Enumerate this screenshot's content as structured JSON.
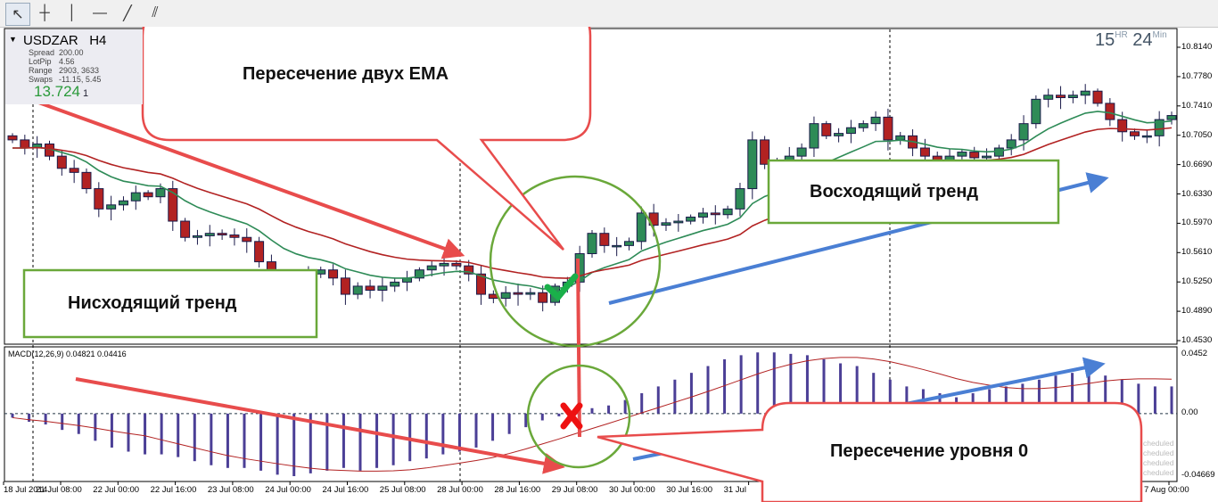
{
  "toolbar": {
    "tools": [
      {
        "icon": "cursor-arrow-icon",
        "glyph": "↖"
      },
      {
        "icon": "crosshair-icon",
        "glyph": "┼"
      },
      {
        "icon": "vertical-line-icon",
        "glyph": "│"
      },
      {
        "icon": "horizontal-line-icon",
        "glyph": "—"
      },
      {
        "icon": "trendline-icon",
        "glyph": "╱"
      },
      {
        "icon": "fibonacci-channel-icon",
        "glyph": "⫽"
      }
    ]
  },
  "symbol_panel": {
    "symbol": "USDZAR",
    "timeframe": "H4",
    "rows": [
      {
        "label": "Spread",
        "value": "200.00"
      },
      {
        "label": "LotPip",
        "value": "4.56"
      },
      {
        "label": "Range",
        "value": "2903, 3633"
      },
      {
        "label": "Swaps",
        "value": "-11.15, 5.45"
      }
    ],
    "value": "13.724",
    "value_suffix": "1"
  },
  "timer": {
    "hours": "15",
    "hours_unit": "HR",
    "minutes": "24",
    "minutes_unit": "Min"
  },
  "chart_data": {
    "type": "candlestick",
    "price_axis": [
      "10.8140",
      "10.7780",
      "10.7410",
      "10.7050",
      "10.6690",
      "10.6330",
      "10.5970",
      "10.5610",
      "10.5250",
      "10.4890",
      "10.4530"
    ],
    "ylim": [
      10.453,
      10.814
    ],
    "closes": [
      10.7,
      10.69,
      10.695,
      10.68,
      10.665,
      10.66,
      10.64,
      10.615,
      10.62,
      10.625,
      10.635,
      10.63,
      10.64,
      10.6,
      10.58,
      10.582,
      10.585,
      10.583,
      10.58,
      10.575,
      10.55,
      10.525,
      10.52,
      10.53,
      10.535,
      10.54,
      10.53,
      10.51,
      10.52,
      10.515,
      10.52,
      10.525,
      10.53,
      10.54,
      10.545,
      10.548,
      10.545,
      10.535,
      10.51,
      10.505,
      10.512,
      10.51,
      10.512,
      10.5,
      10.52,
      10.525,
      10.56,
      10.585,
      10.57,
      10.57,
      10.575,
      10.61,
      10.595,
      10.598,
      10.6,
      10.605,
      10.61,
      10.608,
      10.615,
      10.64,
      10.7,
      10.67,
      10.66,
      10.68,
      10.69,
      10.72,
      10.705,
      10.708,
      10.715,
      10.72,
      10.728,
      10.7,
      10.705,
      10.69,
      10.68,
      10.675,
      10.68,
      10.685,
      10.678,
      10.68,
      10.69,
      10.7,
      10.72,
      10.75,
      10.755,
      10.752,
      10.755,
      10.76,
      10.745,
      10.725,
      10.71,
      10.705,
      10.705,
      10.725,
      10.73
    ],
    "ema_fast_color": "#2e8b57",
    "ema_slow_color": "#b22222",
    "bull_color": "#2e8b57",
    "bear_color": "#b22222",
    "macd": {
      "label": "MACD(12,26,9) 0.04821 0.04416",
      "axis": [
        "0.0452",
        "0.00",
        "-0.04669"
      ],
      "ylim": [
        -0.04669,
        0.0452
      ],
      "values": [
        -0.003,
        -0.006,
        -0.008,
        -0.012,
        -0.015,
        -0.02,
        -0.025,
        -0.028,
        -0.03,
        -0.03,
        -0.032,
        -0.035,
        -0.038,
        -0.04,
        -0.04,
        -0.042,
        -0.045,
        -0.046,
        -0.044,
        -0.042,
        -0.04,
        -0.042,
        -0.04,
        -0.038,
        -0.035,
        -0.033,
        -0.03,
        -0.028,
        -0.025,
        -0.02,
        -0.015,
        -0.01,
        -0.005,
        -0.002,
        0.002,
        0.004,
        0.006,
        0.01,
        0.015,
        0.02,
        0.025,
        0.03,
        0.035,
        0.04,
        0.043,
        0.045,
        0.045,
        0.044,
        0.043,
        0.04,
        0.037,
        0.035,
        0.03,
        0.025,
        0.02,
        0.018,
        0.015,
        0.012,
        0.015,
        0.018,
        0.02,
        0.022,
        0.025,
        0.028,
        0.03,
        0.03,
        0.028,
        0.025,
        0.022,
        0.02,
        0.02
      ],
      "bar_color": "#4b3f96",
      "signal_color": "#b22222"
    },
    "time_labels": [
      "18 Jul 2014",
      "21 Jul 08:00",
      "22 Jul 00:00",
      "22 Jul 16:00",
      "23 Jul 08:00",
      "24 Jul 00:00",
      "24 Jul 16:00",
      "25 Jul 08:00",
      "28 Jul 00:00",
      "28 Jul 16:00",
      "29 Jul 08:00",
      "30 Jul 00:00",
      "30 Jul 16:00",
      "31 Jul",
      "7 Aug 00:00"
    ]
  },
  "scheduled": [
    "cheduled",
    "cheduled",
    "cheduled",
    "cheduled"
  ],
  "annotations": {
    "ema_cross": "Пересечение двух EMA",
    "uptrend": "Восходящий тренд",
    "downtrend": "Нисходящий тренд",
    "zero_cross": "Пересечение уровня 0"
  },
  "colors": {
    "callout_border": "#e84c4c",
    "box_border": "#6aa83a",
    "arrow_red": "#e84c4c",
    "arrow_blue": "#4a7fd4",
    "circle": "#6aa83a"
  }
}
